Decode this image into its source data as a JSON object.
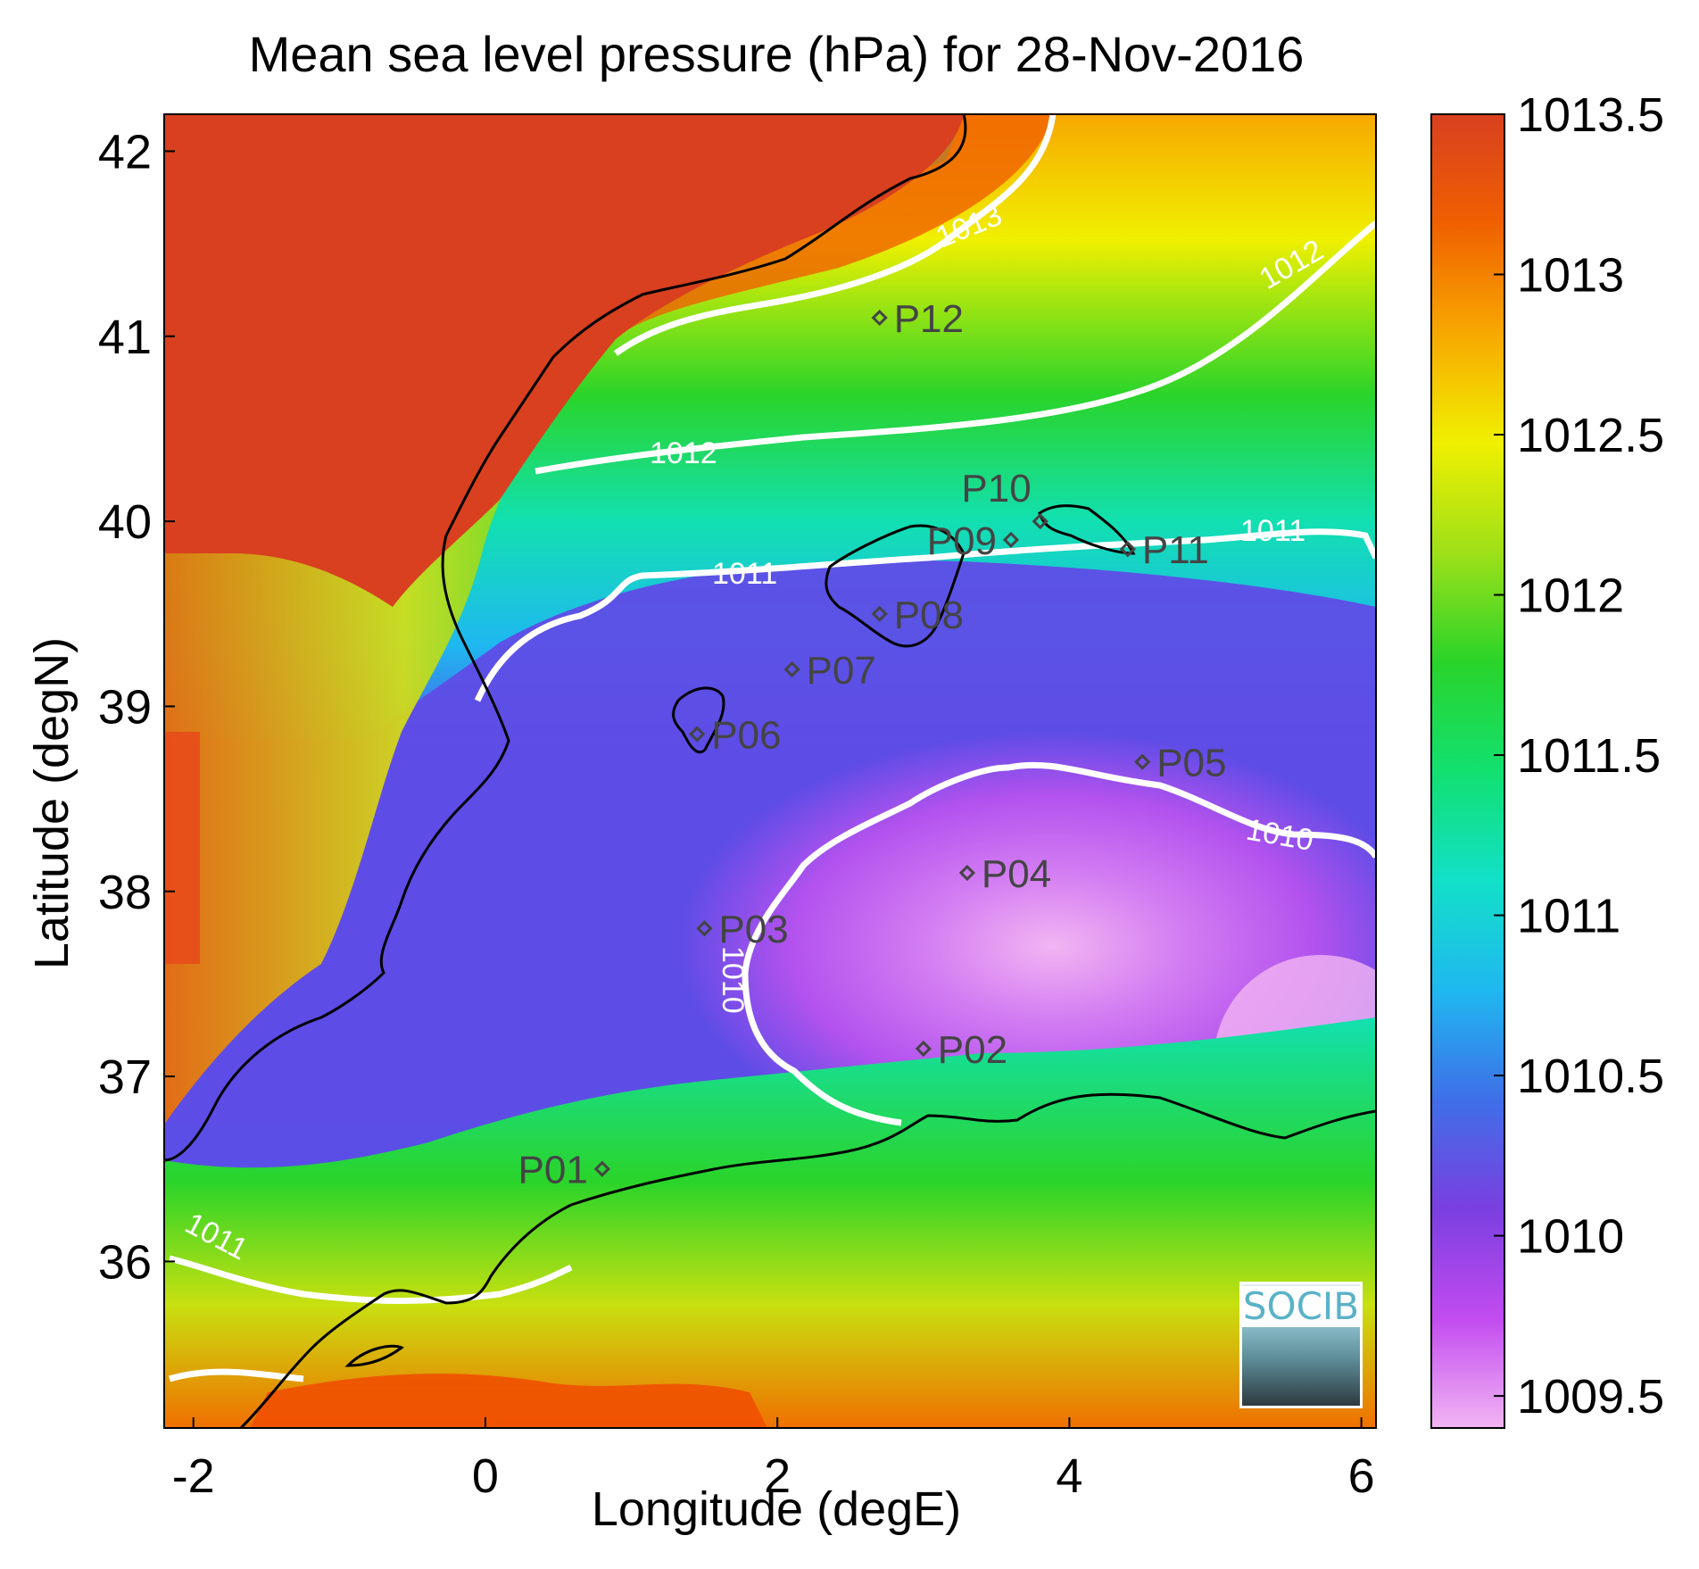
{
  "title": "Mean sea level pressure (hPa) for 28-Nov-2016",
  "xlabel": "Longitude (degE)",
  "ylabel": "Latitude (degN)",
  "x_ticks": [
    "-2",
    "0",
    "2",
    "4",
    "6"
  ],
  "y_ticks": [
    "36",
    "37",
    "38",
    "39",
    "40",
    "41",
    "42"
  ],
  "colorbar_ticks": [
    "1009.5",
    "1010",
    "1010.5",
    "1011",
    "1011.5",
    "1012",
    "1012.5",
    "1013",
    "1013.5"
  ],
  "logo_text": "SOCIB",
  "stations": [
    {
      "id": "P01",
      "lon": 0.8,
      "lat": 36.5
    },
    {
      "id": "P02",
      "lon": 3.0,
      "lat": 37.15
    },
    {
      "id": "P03",
      "lon": 1.5,
      "lat": 37.8
    },
    {
      "id": "P04",
      "lon": 3.3,
      "lat": 38.1
    },
    {
      "id": "P05",
      "lon": 4.5,
      "lat": 38.7
    },
    {
      "id": "P06",
      "lon": 1.45,
      "lat": 38.85
    },
    {
      "id": "P07",
      "lon": 2.1,
      "lat": 39.2
    },
    {
      "id": "P08",
      "lon": 2.7,
      "lat": 39.5
    },
    {
      "id": "P09",
      "lon": 3.6,
      "lat": 39.9
    },
    {
      "id": "P10",
      "lon": 3.8,
      "lat": 40.0
    },
    {
      "id": "P11",
      "lon": 4.4,
      "lat": 39.85
    },
    {
      "id": "P12",
      "lon": 2.7,
      "lat": 41.1
    }
  ],
  "contour_labels": [
    "1013",
    "1012",
    "1012",
    "1011",
    "1011",
    "1011",
    "1010",
    "1010"
  ],
  "colors": {
    "contour": "#ffffff",
    "coast": "#000000",
    "scale": [
      "#f2b5f2",
      "#c24cf0",
      "#7a3fe0",
      "#3f6fe8",
      "#1fb8f0",
      "#12e0c8",
      "#12e070",
      "#2ad42a",
      "#9fe018",
      "#f0f000",
      "#f7a800",
      "#f06000",
      "#d84020"
    ]
  },
  "chart_data": {
    "type": "heatmap",
    "xlim": [
      -2.2,
      6.1
    ],
    "ylim": [
      35.1,
      42.2
    ],
    "clim": [
      1009.4,
      1013.5
    ],
    "variable": "Mean sea level pressure (hPa)",
    "date": "28-Nov-2016",
    "contour_levels": [
      1010,
      1011,
      1012,
      1013
    ]
  }
}
